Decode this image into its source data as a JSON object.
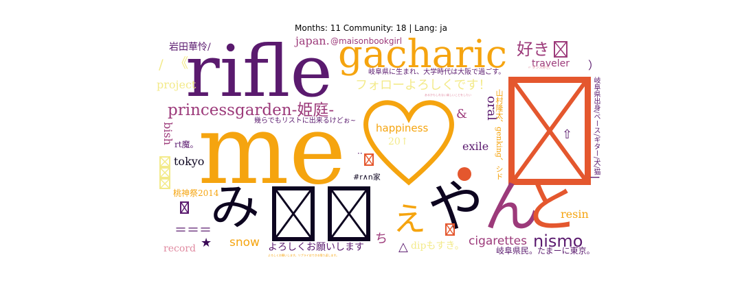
{
  "header": {
    "title": "Months: 11 Community: 18 | Lang: ja"
  },
  "palette": {
    "purple": "#5a1a6e",
    "darkpurple": "#3b0a57",
    "orange": "#f5a40f",
    "red": "#e4572e",
    "magenta": "#9c3a7a",
    "black": "#0d0520",
    "lightyellow": "#f3ea8a",
    "pink": "#e08aa0",
    "gray": "#8a7f95"
  },
  "words": {
    "rifle": "rifle",
    "me": "me",
    "gacharic": "gacharic",
    "princessgarden": "princessgarden-姫庭-",
    "heart": "♥",
    "mi": "み",
    "yanto": "やんと",
    "e": "え",
    "suki": "好き",
    "japan": "japan.",
    "maison": "@maisonbookgirl",
    "iwata": "岩田華怜/",
    "angle": "《",
    "slash": "/",
    "project": "project",
    "gifu1": "岐阜県に生まれ、大学時代は大阪で過ごす。",
    "follow": "フォローよろしくです！",
    "ikuradeno": "幾らでもリストに出来るけどぉ~",
    "traveler": "traveler",
    "happiness": "happiness",
    "twenty": "20↑",
    "amp": "&",
    "oral": "oral",
    "exile": "exile",
    "bish": "bish",
    "rtma": "rt魔。",
    "tokyo": "tokyo",
    "dots": "··",
    "rnhouse": "#r∧n家",
    "momo": "桃神祭2014",
    "equals": "＝＝＝",
    "star": "★",
    "record": "record",
    "snow": "snow",
    "yoroshiku": "よろしくお願いします",
    "chi": "ち",
    "triangle": "△",
    "dip": "dipもすき。",
    "cigarettes": "cigarettes",
    "nismo": "nismo",
    "resin": "resin",
    "gifukenmin": "岐阜県民。たまーに東京。",
    "yamada": "山村隆太、genking、シド",
    "gifuorigin": "岐阜県出身/ベース/ギター/犬/猫",
    "paren": "）",
    "uparrow": "⇧",
    "dash": "ー",
    "tiny1": "〃 ダンス好き。",
    "tiny2": "あるかもしれない楽しいことをしたい",
    "tiny3": "よろしくお願いします。リプライはできる限り返します。"
  }
}
